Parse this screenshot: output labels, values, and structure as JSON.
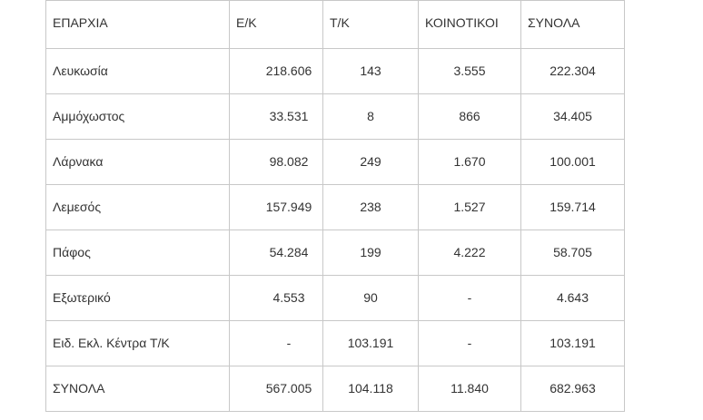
{
  "table": {
    "headers": [
      "ΕΠΑΡΧΙΑ",
      "Ε/Κ",
      "Τ/Κ",
      "ΚΟΙΝΟΤΙΚΟΙ",
      "ΣΥΝΟΛΑ"
    ],
    "rows": [
      {
        "name": "Λευκωσία",
        "ek": "218.606",
        "tk": "143",
        "koin": "3.555",
        "total": "222.304"
      },
      {
        "name": "Αμμόχωστος",
        "ek": "33.531",
        "tk": "8",
        "koin": "866",
        "total": "34.405"
      },
      {
        "name": "Λάρνακα",
        "ek": "98.082",
        "tk": "249",
        "koin": "1.670",
        "total": "100.001"
      },
      {
        "name": "Λεμεσός",
        "ek": "157.949",
        "tk": "238",
        "koin": "1.527",
        "total": "159.714"
      },
      {
        "name": "Πάφος",
        "ek": "54.284",
        "tk": "199",
        "koin": "4.222",
        "total": "58.705"
      },
      {
        "name": "Εξωτερικό",
        "ek": "4.553",
        "tk": "90",
        "koin": "-",
        "total": "4.643"
      },
      {
        "name": "Ειδ. Εκλ. Κέντρα Τ/Κ",
        "ek": "-",
        "tk": "103.191",
        "koin": "-",
        "total": "103.191"
      }
    ],
    "totals": {
      "name": "ΣΥΝΟΛΑ",
      "ek": "567.005",
      "tk": "104.118",
      "koin": "11.840",
      "total": "682.963"
    }
  }
}
